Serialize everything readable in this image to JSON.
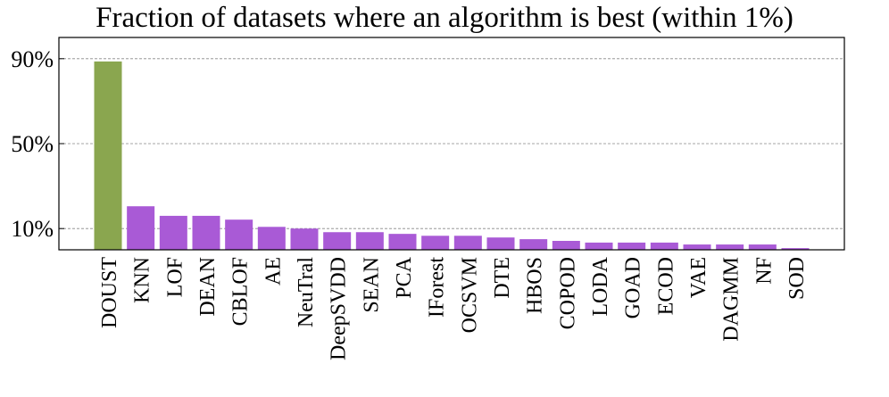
{
  "chart_data": {
    "type": "bar",
    "title": "Fraction of datasets where an algorithm is best (within 1%)",
    "categories": [
      "DOUST",
      "KNN",
      "LOF",
      "DEAN",
      "CBLOF",
      "AE",
      "NeuTral",
      "DeepSVDD",
      "SEAN",
      "PCA",
      "IForest",
      "OCSVM",
      "DTE",
      "HBOS",
      "COPOD",
      "LODA",
      "GOAD",
      "ECOD",
      "VAE",
      "DAGMM",
      "NF",
      "SOD"
    ],
    "values": [
      88.7,
      20.5,
      16,
      16,
      14.2,
      10.8,
      10,
      8.3,
      8.3,
      7.5,
      6.6,
      6.6,
      5.8,
      5,
      4.2,
      3.4,
      3.4,
      3.4,
      2.5,
      2.5,
      2.5,
      0.8
    ],
    "colors": [
      "#8aa64f",
      "#a95ad6",
      "#a95ad6",
      "#a95ad6",
      "#a95ad6",
      "#a95ad6",
      "#a95ad6",
      "#a95ad6",
      "#a95ad6",
      "#a95ad6",
      "#a95ad6",
      "#a95ad6",
      "#a95ad6",
      "#a95ad6",
      "#a95ad6",
      "#a95ad6",
      "#a95ad6",
      "#a95ad6",
      "#a95ad6",
      "#a95ad6",
      "#a95ad6",
      "#a95ad6"
    ],
    "ylim": [
      0,
      100
    ],
    "yticks": [
      {
        "value": 10,
        "label": "10%"
      },
      {
        "value": 50,
        "label": "50%"
      },
      {
        "value": 90,
        "label": "90%"
      }
    ],
    "grid": true
  }
}
